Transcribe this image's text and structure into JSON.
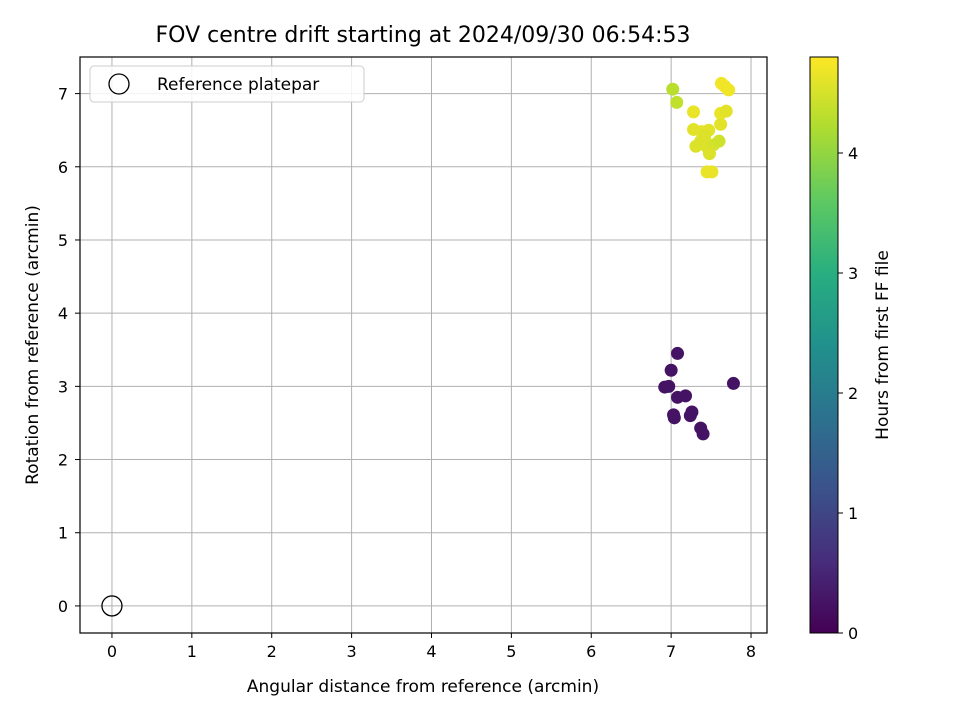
{
  "chart_data": {
    "type": "scatter",
    "title": "FOV centre drift starting at 2024/09/30 06:54:53",
    "xlabel": "Angular distance from reference (arcmin)",
    "ylabel": "Rotation from reference (arcmin)",
    "xlim": [
      -0.4,
      8.2
    ],
    "ylim": [
      -0.37,
      7.5
    ],
    "xticks": [
      "0",
      "1",
      "2",
      "3",
      "4",
      "5",
      "6",
      "7",
      "8"
    ],
    "yticks": [
      "0",
      "1",
      "2",
      "3",
      "4",
      "5",
      "6",
      "7"
    ],
    "grid": true,
    "legend": {
      "placement": "upper-left",
      "entries": [
        "Reference platepar"
      ]
    },
    "reference": {
      "x": 0,
      "y": 0
    },
    "colorbar": {
      "label": "Hours from first FF file",
      "range": [
        0,
        4.8
      ],
      "ticks": [
        "0",
        "1",
        "2",
        "3",
        "4"
      ],
      "colormap": "viridis"
    },
    "points": [
      {
        "x": 7.08,
        "y": 3.45,
        "t": 0.25
      },
      {
        "x": 7.0,
        "y": 3.22,
        "t": 0.25
      },
      {
        "x": 6.92,
        "y": 2.99,
        "t": 0.25
      },
      {
        "x": 6.97,
        "y": 3.0,
        "t": 0.25
      },
      {
        "x": 7.18,
        "y": 2.87,
        "t": 0.25
      },
      {
        "x": 7.08,
        "y": 2.85,
        "t": 0.25
      },
      {
        "x": 7.78,
        "y": 3.04,
        "t": 0.25
      },
      {
        "x": 7.26,
        "y": 2.65,
        "t": 0.25
      },
      {
        "x": 7.24,
        "y": 2.6,
        "t": 0.25
      },
      {
        "x": 7.03,
        "y": 2.61,
        "t": 0.25
      },
      {
        "x": 7.04,
        "y": 2.57,
        "t": 0.25
      },
      {
        "x": 7.37,
        "y": 2.43,
        "t": 0.25
      },
      {
        "x": 7.4,
        "y": 2.35,
        "t": 0.25
      },
      {
        "x": 7.02,
        "y": 7.06,
        "t": 4.3
      },
      {
        "x": 7.07,
        "y": 6.88,
        "t": 4.35
      },
      {
        "x": 7.63,
        "y": 7.14,
        "t": 4.7
      },
      {
        "x": 7.67,
        "y": 7.1,
        "t": 4.7
      },
      {
        "x": 7.72,
        "y": 7.05,
        "t": 4.7
      },
      {
        "x": 7.28,
        "y": 6.75,
        "t": 4.65
      },
      {
        "x": 7.62,
        "y": 6.73,
        "t": 4.65
      },
      {
        "x": 7.69,
        "y": 6.76,
        "t": 4.6
      },
      {
        "x": 7.62,
        "y": 6.58,
        "t": 4.6
      },
      {
        "x": 7.28,
        "y": 6.51,
        "t": 4.6
      },
      {
        "x": 7.38,
        "y": 6.48,
        "t": 4.6
      },
      {
        "x": 7.47,
        "y": 6.5,
        "t": 4.6
      },
      {
        "x": 7.42,
        "y": 6.42,
        "t": 4.55
      },
      {
        "x": 7.37,
        "y": 6.35,
        "t": 4.55
      },
      {
        "x": 7.31,
        "y": 6.28,
        "t": 4.55
      },
      {
        "x": 7.45,
        "y": 6.27,
        "t": 4.55
      },
      {
        "x": 7.53,
        "y": 6.3,
        "t": 4.5
      },
      {
        "x": 7.6,
        "y": 6.35,
        "t": 4.45
      },
      {
        "x": 7.48,
        "y": 6.18,
        "t": 4.55
      },
      {
        "x": 7.45,
        "y": 5.93,
        "t": 4.65
      },
      {
        "x": 7.51,
        "y": 5.93,
        "t": 4.65
      }
    ]
  }
}
